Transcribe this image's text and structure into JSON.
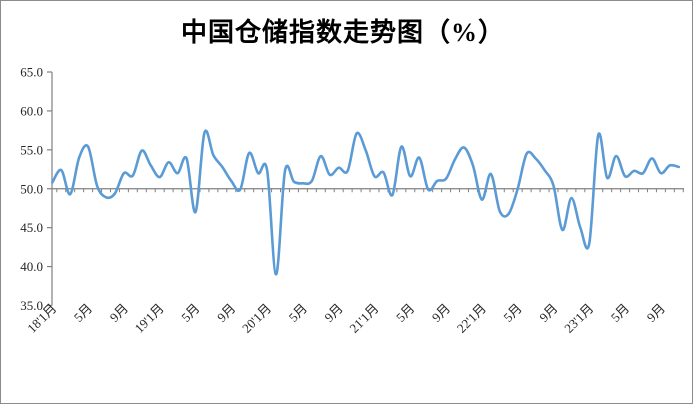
{
  "title": "中国仓储指数走势图（%）",
  "chart_data": {
    "type": "line",
    "series": [
      {
        "name": "中国仓储指数",
        "color": "#5B9BD5",
        "start_month": "2018-01",
        "end_month": "2023-11",
        "values": [
          50.8,
          52.4,
          49.3,
          54.0,
          55.4,
          50.4,
          48.9,
          49.4,
          52.0,
          51.7,
          54.9,
          53.0,
          51.5,
          53.4,
          52.0,
          53.9,
          47.0,
          57.2,
          54.3,
          52.8,
          51.0,
          49.9,
          54.6,
          52.0,
          52.4,
          39.0,
          52.3,
          50.9,
          50.7,
          51.0,
          54.2,
          51.8,
          52.7,
          52.3,
          57.1,
          55.0,
          51.6,
          52.1,
          49.2,
          55.4,
          51.6,
          54.0,
          49.9,
          51.0,
          51.3,
          53.8,
          55.3,
          53.0,
          48.6,
          51.9,
          47.1,
          46.8,
          50.0,
          54.5,
          53.9,
          52.4,
          50.4,
          44.7,
          48.8,
          45.0,
          43.0,
          56.9,
          51.4,
          54.2,
          51.6,
          52.3,
          52.0,
          53.9,
          52.0,
          53.0,
          52.8
        ]
      }
    ],
    "x_tick_labels": [
      {
        "label": "18'1月",
        "month": 0
      },
      {
        "label": "5月",
        "month": 4
      },
      {
        "label": "9月",
        "month": 8
      },
      {
        "label": "19'1月",
        "month": 12
      },
      {
        "label": "5月",
        "month": 16
      },
      {
        "label": "9月",
        "month": 20
      },
      {
        "label": "20'1月",
        "month": 24
      },
      {
        "label": "5月",
        "month": 28
      },
      {
        "label": "9月",
        "month": 32
      },
      {
        "label": "21'1月",
        "month": 36
      },
      {
        "label": "5月",
        "month": 40
      },
      {
        "label": "9月",
        "month": 44
      },
      {
        "label": "22'1月",
        "month": 48
      },
      {
        "label": "5月",
        "month": 52
      },
      {
        "label": "9月",
        "month": 56
      },
      {
        "label": "23'1月",
        "month": 60
      },
      {
        "label": "5月",
        "month": 64
      },
      {
        "label": "9月",
        "month": 68
      }
    ],
    "y_tick_labels": [
      "65.0",
      "60.0",
      "55.0",
      "50.0",
      "45.0",
      "40.0",
      "35.0"
    ],
    "ylim": [
      35,
      65
    ],
    "y_step": 5,
    "x_axis_cross_value": 50,
    "gridlines": false,
    "legend": "none"
  },
  "colors": {
    "line": "#5B9BD5",
    "axis": "#808080",
    "tick_text": "#262626",
    "title_text": "#000000",
    "border": "#8C8C8C",
    "background": "#FFFFFF"
  }
}
